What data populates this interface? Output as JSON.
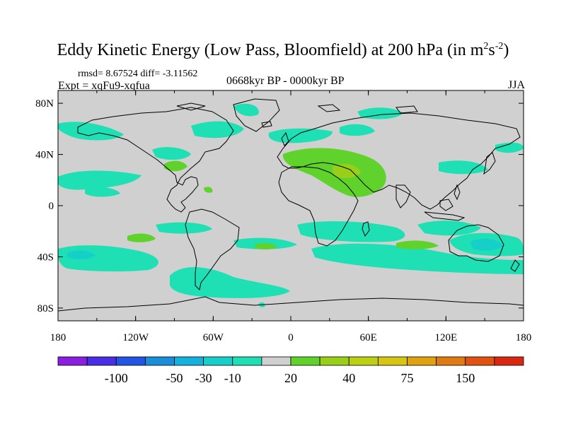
{
  "title": {
    "main": "Eddy Kinetic Energy (Low Pass, Bloomfield) at 200 hPa (in m",
    "sup1": "2",
    "mid": "s",
    "sup2": "-2",
    "end": ")"
  },
  "stats": "rmsd= 8.67524 diff= -3.11562",
  "expt": "Expt = xqFu9-xqfua",
  "period": "0668kyr BP - 0000kyr BP",
  "season": "JJA",
  "axes": {
    "lon_ticks": [
      "180",
      "120W",
      "60W",
      "0",
      "60E",
      "120E",
      "180"
    ],
    "lat_ticks": [
      "80N",
      "40N",
      "0",
      "40S",
      "80S"
    ]
  },
  "colorbar": {
    "colors": [
      "#8b1fe0",
      "#4a2ee6",
      "#2255e3",
      "#1a8ed8",
      "#14b1dd",
      "#17cfc9",
      "#1ee0b4",
      "#d0d0d0",
      "#5fd22c",
      "#98cf18",
      "#bbcf13",
      "#d7c512",
      "#e1a212",
      "#e07a12",
      "#e05212",
      "#d8280f"
    ],
    "labels": [
      "-100",
      "-50",
      "-30",
      "-10",
      "20",
      "40",
      "75",
      "150"
    ]
  },
  "colors": {
    "background_field": "#d0d0d0",
    "negative_light": "#1ee0b4",
    "negative_medium": "#17cfc9",
    "positive_light": "#5fd22c",
    "positive_medium": "#98cf18"
  }
}
